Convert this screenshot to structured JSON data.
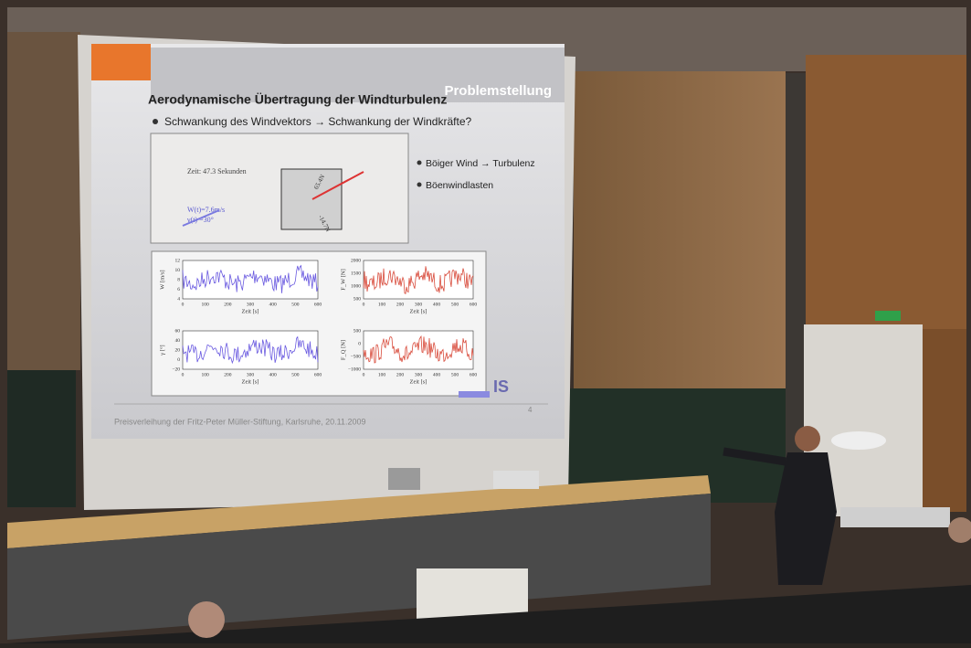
{
  "slide": {
    "header": "Problemstellung",
    "title": "Aerodynamische Übertragung der Windturbulenz",
    "bullet": "Schwankung des Windvektors → Schwankung der Windkräfte?",
    "animation": {
      "time": "Zeit: 47.3 Sekunden",
      "wind": "W(t)=7.6m/s",
      "angle": "γ(t) =30°",
      "force1": "65.4N",
      "force2": "-14.7N"
    },
    "side_bullets": [
      "Böiger Wind → Turbulenz",
      "Böenwindlasten"
    ],
    "plots": [
      {
        "ylabel": "W [m/s]",
        "xlabel": "Zeit [s]",
        "yticks": [
          "12",
          "10",
          "8",
          "6",
          "4"
        ],
        "xticks": [
          "0",
          "100",
          "200",
          "300",
          "400",
          "500",
          "600"
        ]
      },
      {
        "ylabel": "F_W [N]",
        "xlabel": "Zeit [s]",
        "yticks": [
          "2000",
          "1500",
          "1000",
          "500"
        ],
        "xticks": [
          "0",
          "100",
          "200",
          "300",
          "400",
          "500",
          "600"
        ]
      },
      {
        "ylabel": "γ [°]",
        "xlabel": "Zeit [s]",
        "yticks": [
          "60",
          "40",
          "20",
          "0",
          "−20"
        ],
        "xticks": [
          "0",
          "100",
          "200",
          "300",
          "400",
          "500",
          "600"
        ]
      },
      {
        "ylabel": "F_Q [N]",
        "xlabel": "Zeit [s]",
        "yticks": [
          "500",
          "0",
          "−500",
          "−1000"
        ],
        "xticks": [
          "0",
          "100",
          "200",
          "300",
          "400",
          "500",
          "600"
        ]
      }
    ],
    "logo": "IS",
    "footer": "Preisverleihung der Fritz-Peter Müller-Stiftung, Karlsruhe, 20.11.2009",
    "page_number": "4"
  }
}
